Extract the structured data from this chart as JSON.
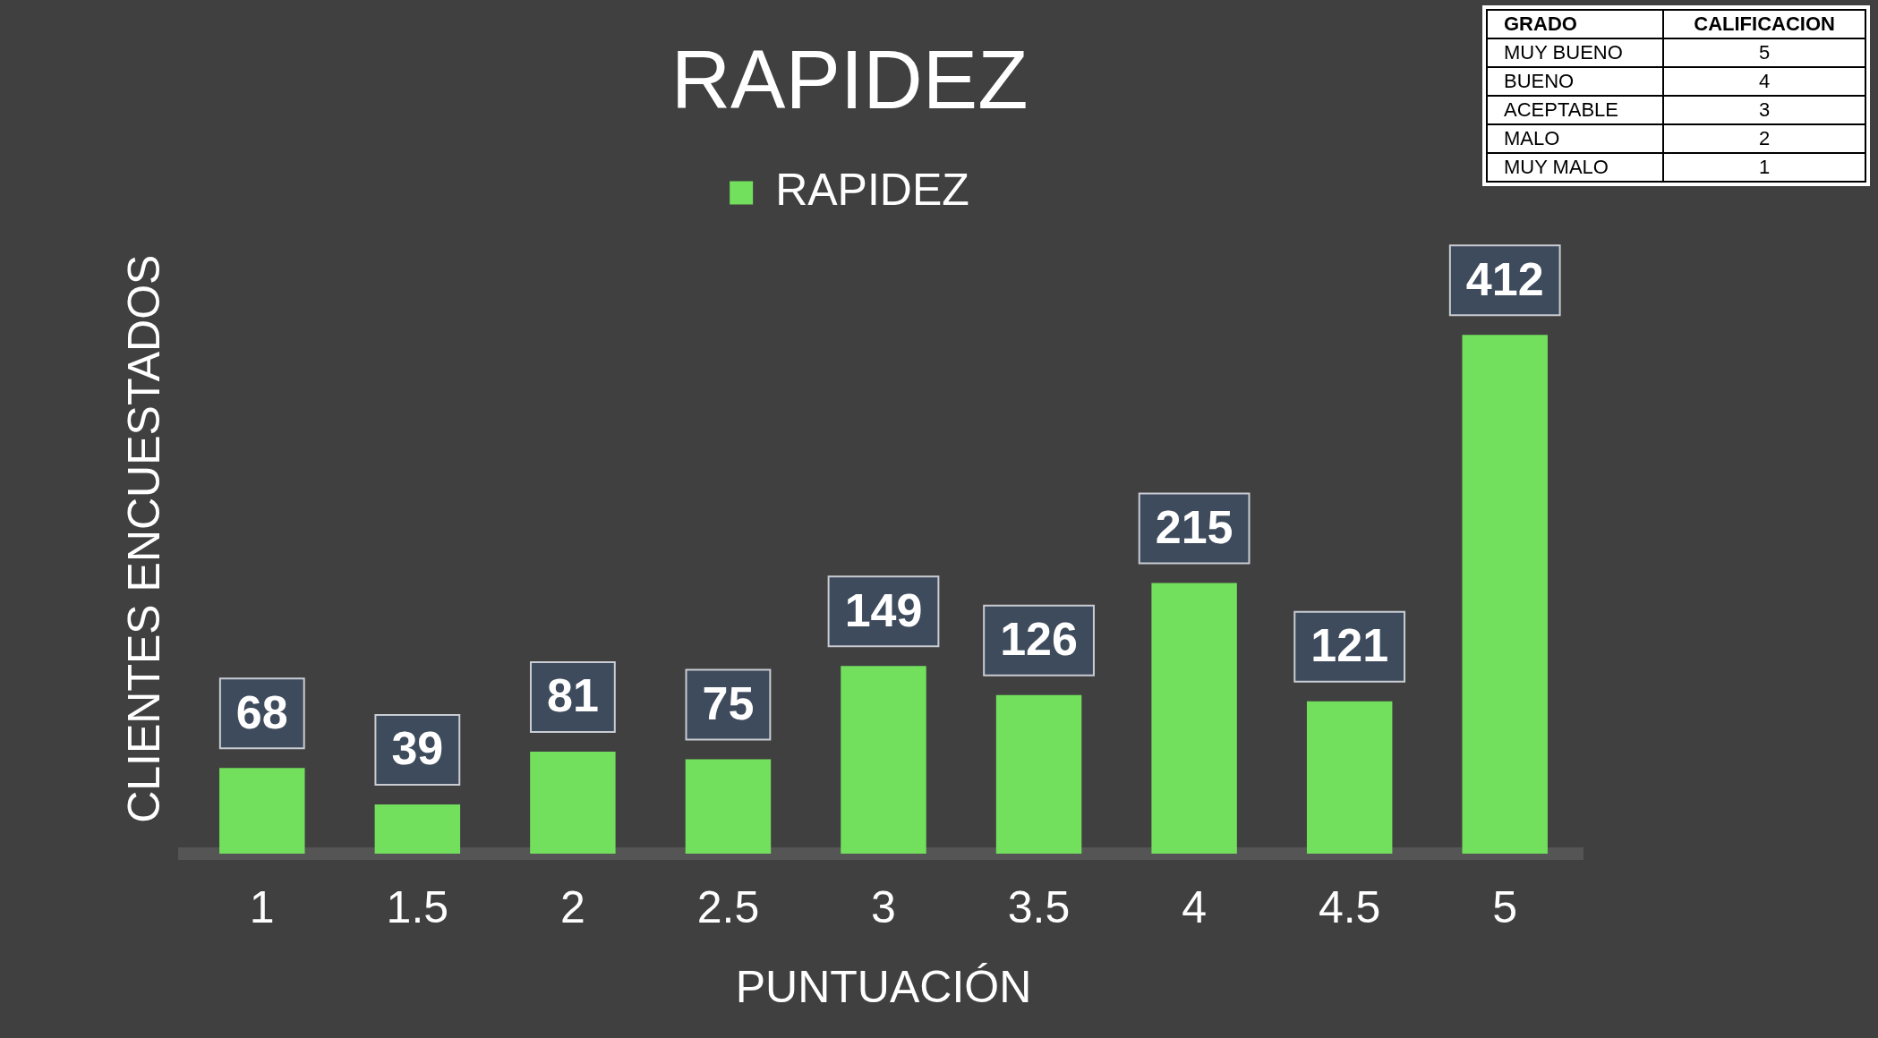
{
  "chart_data": {
    "type": "bar",
    "title": "RAPIDEZ",
    "xlabel": "PUNTUACIÓN",
    "ylabel": "CLIENTES ENCUESTADOS",
    "categories": [
      "1",
      "1.5",
      "2",
      "2.5",
      "3",
      "3.5",
      "4",
      "4.5",
      "5"
    ],
    "series": [
      {
        "name": "RAPIDEZ",
        "color": "#72e05c",
        "values": [
          68,
          39,
          81,
          75,
          149,
          126,
          215,
          121,
          412
        ]
      }
    ],
    "data_labels": true,
    "legend": "top",
    "grid": false,
    "annotations": [
      "GRADO",
      "CALIFICACION",
      "MUY BUENO",
      "5",
      "BUENO",
      "4",
      "ACEPTABLE",
      "3",
      "MALO",
      "2",
      "MUY MALO",
      "1"
    ]
  }
}
